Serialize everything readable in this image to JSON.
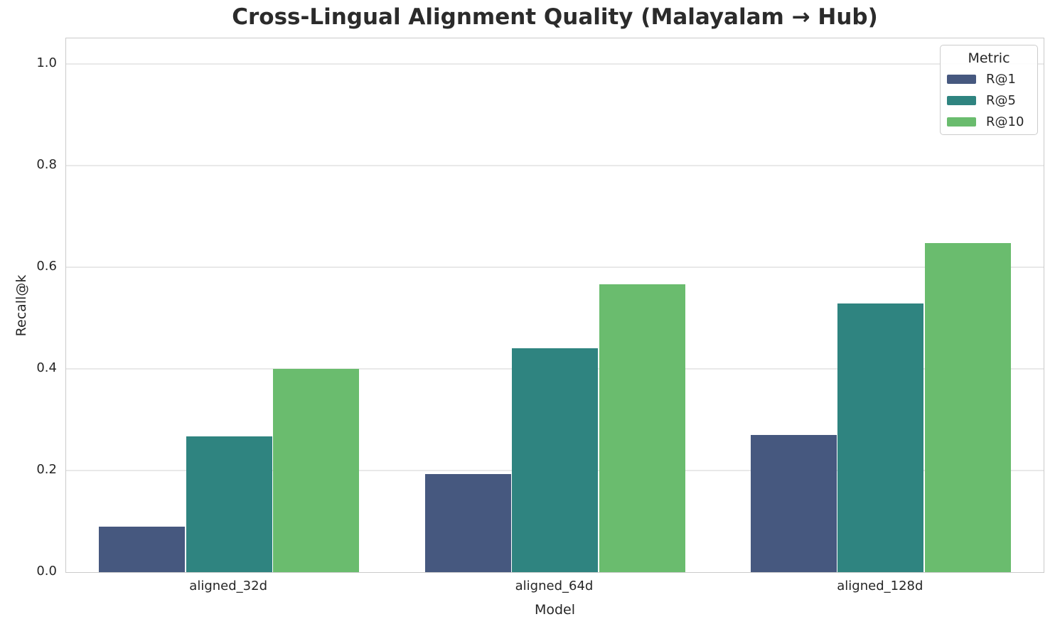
{
  "chart_data": {
    "type": "bar",
    "title": "Cross-Lingual Alignment Quality (Malayalam → Hub)",
    "xlabel": "Model",
    "ylabel": "Recall@k",
    "categories": [
      "aligned_32d",
      "aligned_64d",
      "aligned_128d"
    ],
    "series": [
      {
        "name": "R@1",
        "color": "#46587f",
        "values": [
          0.09,
          0.193,
          0.27
        ]
      },
      {
        "name": "R@5",
        "color": "#2f8480",
        "values": [
          0.267,
          0.44,
          0.528
        ]
      },
      {
        "name": "R@10",
        "color": "#6abc6e",
        "values": [
          0.4,
          0.566,
          0.647
        ]
      }
    ],
    "ylim": [
      0,
      1.05
    ],
    "yticks": [
      0.0,
      0.2,
      0.4,
      0.6,
      0.8,
      1.0
    ],
    "grid": "horizontal",
    "legend": {
      "title": "Metric",
      "position": "upper right"
    },
    "colors": {
      "background": "#ffffff",
      "grid": "#e9e9e9",
      "spine": "#cbcbcb",
      "text": "#262626",
      "title": "#2b2b2b"
    }
  }
}
